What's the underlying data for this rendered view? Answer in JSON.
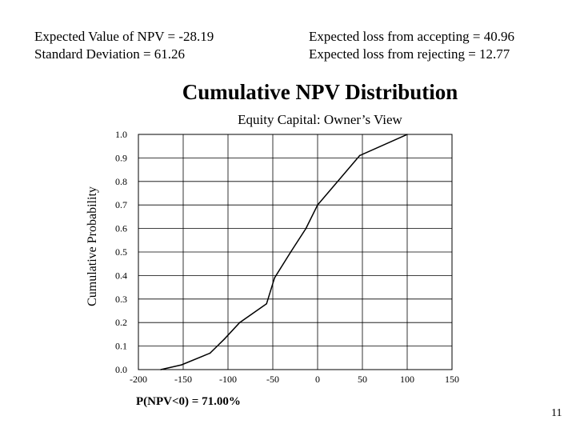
{
  "stats": {
    "expected_npv": "Expected Value of NPV = -28.19",
    "std_dev": "Standard Deviation = 61.26",
    "loss_accepting": "Expected  loss from accepting = 40.96",
    "loss_rejecting": "Expected loss from rejecting = 12.77"
  },
  "summary": "P(NPV<0) = 71.00%",
  "page_number": "11",
  "chart_data": {
    "type": "line",
    "title": "Cumulative NPV Distribution",
    "subtitle": "Equity  Capital:  Owner’s View",
    "xlabel": "",
    "ylabel": "Cumulative Probability",
    "xlim": [
      -200,
      150
    ],
    "ylim": [
      0,
      1
    ],
    "grid": true,
    "x_ticks": [
      "-200",
      "-150",
      "-100",
      "-50",
      "0",
      "50",
      "100",
      "150"
    ],
    "y_ticks": [
      "0.0",
      "0.1",
      "0.2",
      "0.3",
      "0.4",
      "0.5",
      "0.6",
      "0.7",
      "0.8",
      "0.9",
      "1.0"
    ],
    "series": [
      {
        "name": "",
        "x": [
          -175,
          -152,
          -120,
          -104,
          -87,
          -57,
          -48,
          -30,
          -13,
          0,
          47,
          100
        ],
        "y": [
          0.0,
          0.02,
          0.07,
          0.13,
          0.2,
          0.28,
          0.39,
          0.5,
          0.6,
          0.7,
          0.91,
          1.0
        ]
      }
    ]
  }
}
